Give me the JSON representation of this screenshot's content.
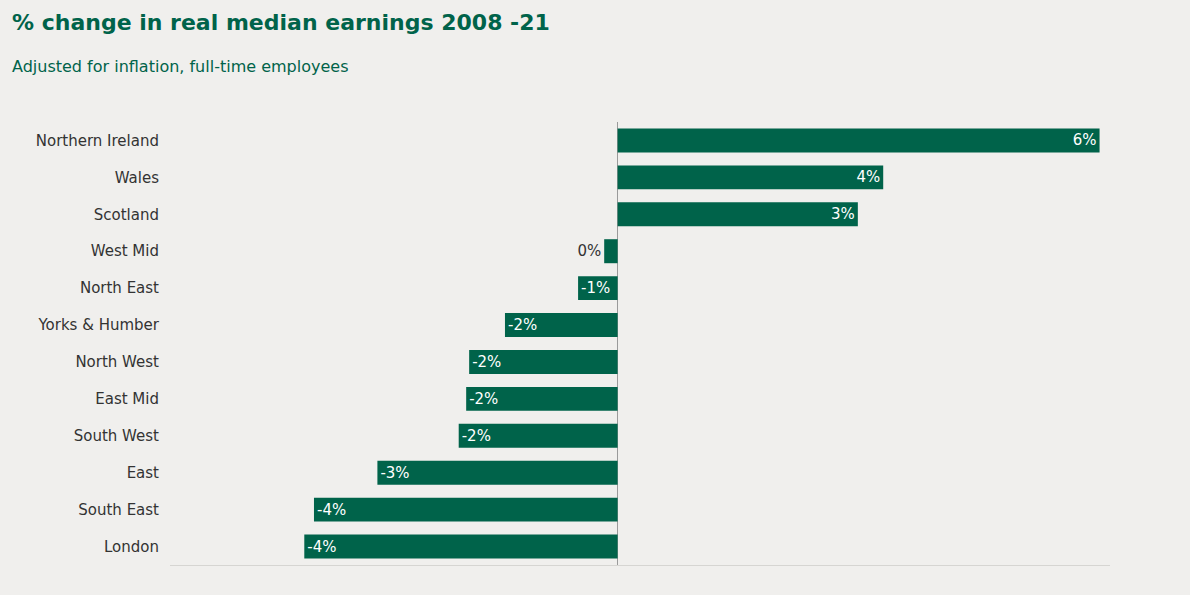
{
  "chart_data": {
    "type": "bar",
    "orientation": "horizontal",
    "title": "% change in real median earnings 2008 -21",
    "subtitle": "Adjusted for inflation, full-time employees",
    "categories": [
      "Northern Ireland",
      "Wales",
      "Scotland",
      "West Mid",
      "North East",
      "Yorks & Humber",
      "North West",
      "East Mid",
      "South West",
      "East",
      "South East",
      "London"
    ],
    "values": [
      6.46,
      3.56,
      3.22,
      -0.18,
      -0.53,
      -1.51,
      -1.99,
      -2.03,
      -2.13,
      -3.22,
      -4.07,
      -4.2
    ],
    "value_labels": [
      "6%",
      "4%",
      "3%",
      "0%",
      "-1%",
      "-2%",
      "-2%",
      "-2%",
      "-2%",
      "-3%",
      "-4%",
      "-4%"
    ],
    "data_labels": true,
    "color": "#00634a",
    "xlim": [
      -6,
      6.6
    ],
    "tick_labels": "y",
    "grid": false
  }
}
